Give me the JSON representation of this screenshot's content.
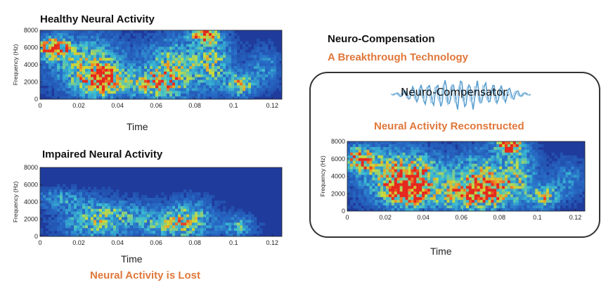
{
  "titles": {
    "healthy": "Healthy Neural Activity",
    "impaired": "Impaired Neural Activity",
    "comp_title": "Neuro-Compensation",
    "comp_subtitle": "A Breakthrough Technology",
    "reconstructed": "Neural Activity Reconstructed",
    "lost": "Neural Activity is Lost",
    "logo": "Neuro-Compensator."
  },
  "colors": {
    "accent": "#e0773a",
    "plot_bg": "#1f3b9c"
  },
  "chart_data": [
    {
      "type": "heatmap",
      "name": "healthy",
      "xlabel": "Time",
      "ylabel": "Frequency (Hz)",
      "xticks": [
        "0",
        "0.02",
        "0.04",
        "0.06",
        "0.08",
        "0.1",
        "0.12"
      ],
      "yticks": [
        "0",
        "2000",
        "4000",
        "6000",
        "8000"
      ],
      "xlim": [
        0,
        0.125
      ],
      "ylim": [
        0,
        8000
      ]
    },
    {
      "type": "heatmap",
      "name": "impaired",
      "xlabel": "Time",
      "ylabel": "Frequency (Hz)",
      "xticks": [
        "0",
        "0.02",
        "0.04",
        "0.06",
        "0.08",
        "0.1",
        "0.12"
      ],
      "yticks": [
        "0",
        "2000",
        "4000",
        "6000",
        "8000"
      ],
      "xlim": [
        0,
        0.125
      ],
      "ylim": [
        0,
        8000
      ]
    },
    {
      "type": "heatmap",
      "name": "reconstructed",
      "xlabel": "Time",
      "ylabel": "Frequency (Hz)",
      "xticks": [
        "0",
        "0.02",
        "0.04",
        "0.06",
        "0.08",
        "0.1",
        "0.12"
      ],
      "yticks": [
        "0",
        "2000",
        "4000",
        "6000",
        "8000"
      ],
      "xlim": [
        0,
        0.125
      ],
      "ylim": [
        0,
        8000
      ]
    }
  ]
}
